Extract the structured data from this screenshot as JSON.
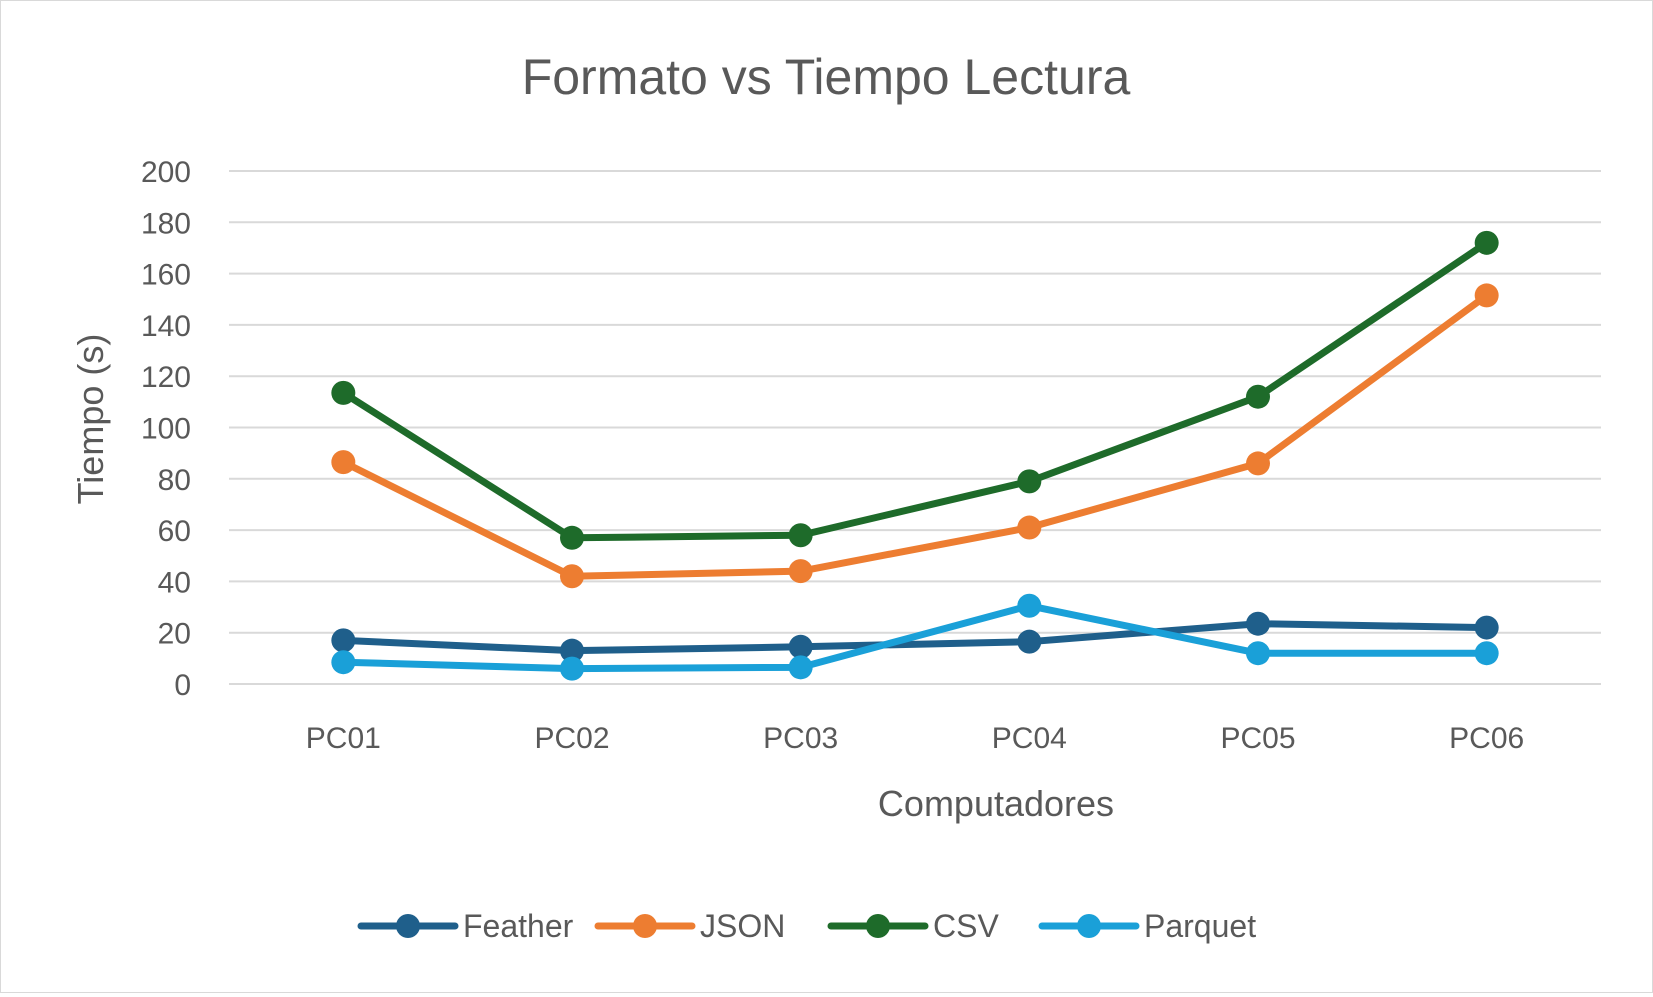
{
  "chart_data": {
    "type": "line",
    "title": "Formato vs Tiempo Lectura",
    "xlabel": "Computadores",
    "ylabel": "Tiempo (s)",
    "categories": [
      "PC01",
      "PC02",
      "PC03",
      "PC04",
      "PC05",
      "PC06"
    ],
    "ylim": [
      0,
      200
    ],
    "yticks": [
      0,
      20,
      40,
      60,
      80,
      100,
      120,
      140,
      160,
      180,
      200
    ],
    "grid": true,
    "legend": "bottom",
    "series": [
      {
        "name": "Feather",
        "color": "#1f5f8b",
        "values": [
          17,
          13,
          14.5,
          16.5,
          23.5,
          22
        ]
      },
      {
        "name": "JSON",
        "color": "#ed7d31",
        "values": [
          86.5,
          42,
          44,
          61,
          86,
          151.5
        ]
      },
      {
        "name": "CSV",
        "color": "#1e6b2a",
        "values": [
          113.5,
          57,
          58,
          79,
          112,
          172
        ]
      },
      {
        "name": "Parquet",
        "color": "#1aa0d8",
        "values": [
          8.5,
          6,
          6.5,
          30.5,
          12,
          12
        ]
      }
    ]
  }
}
